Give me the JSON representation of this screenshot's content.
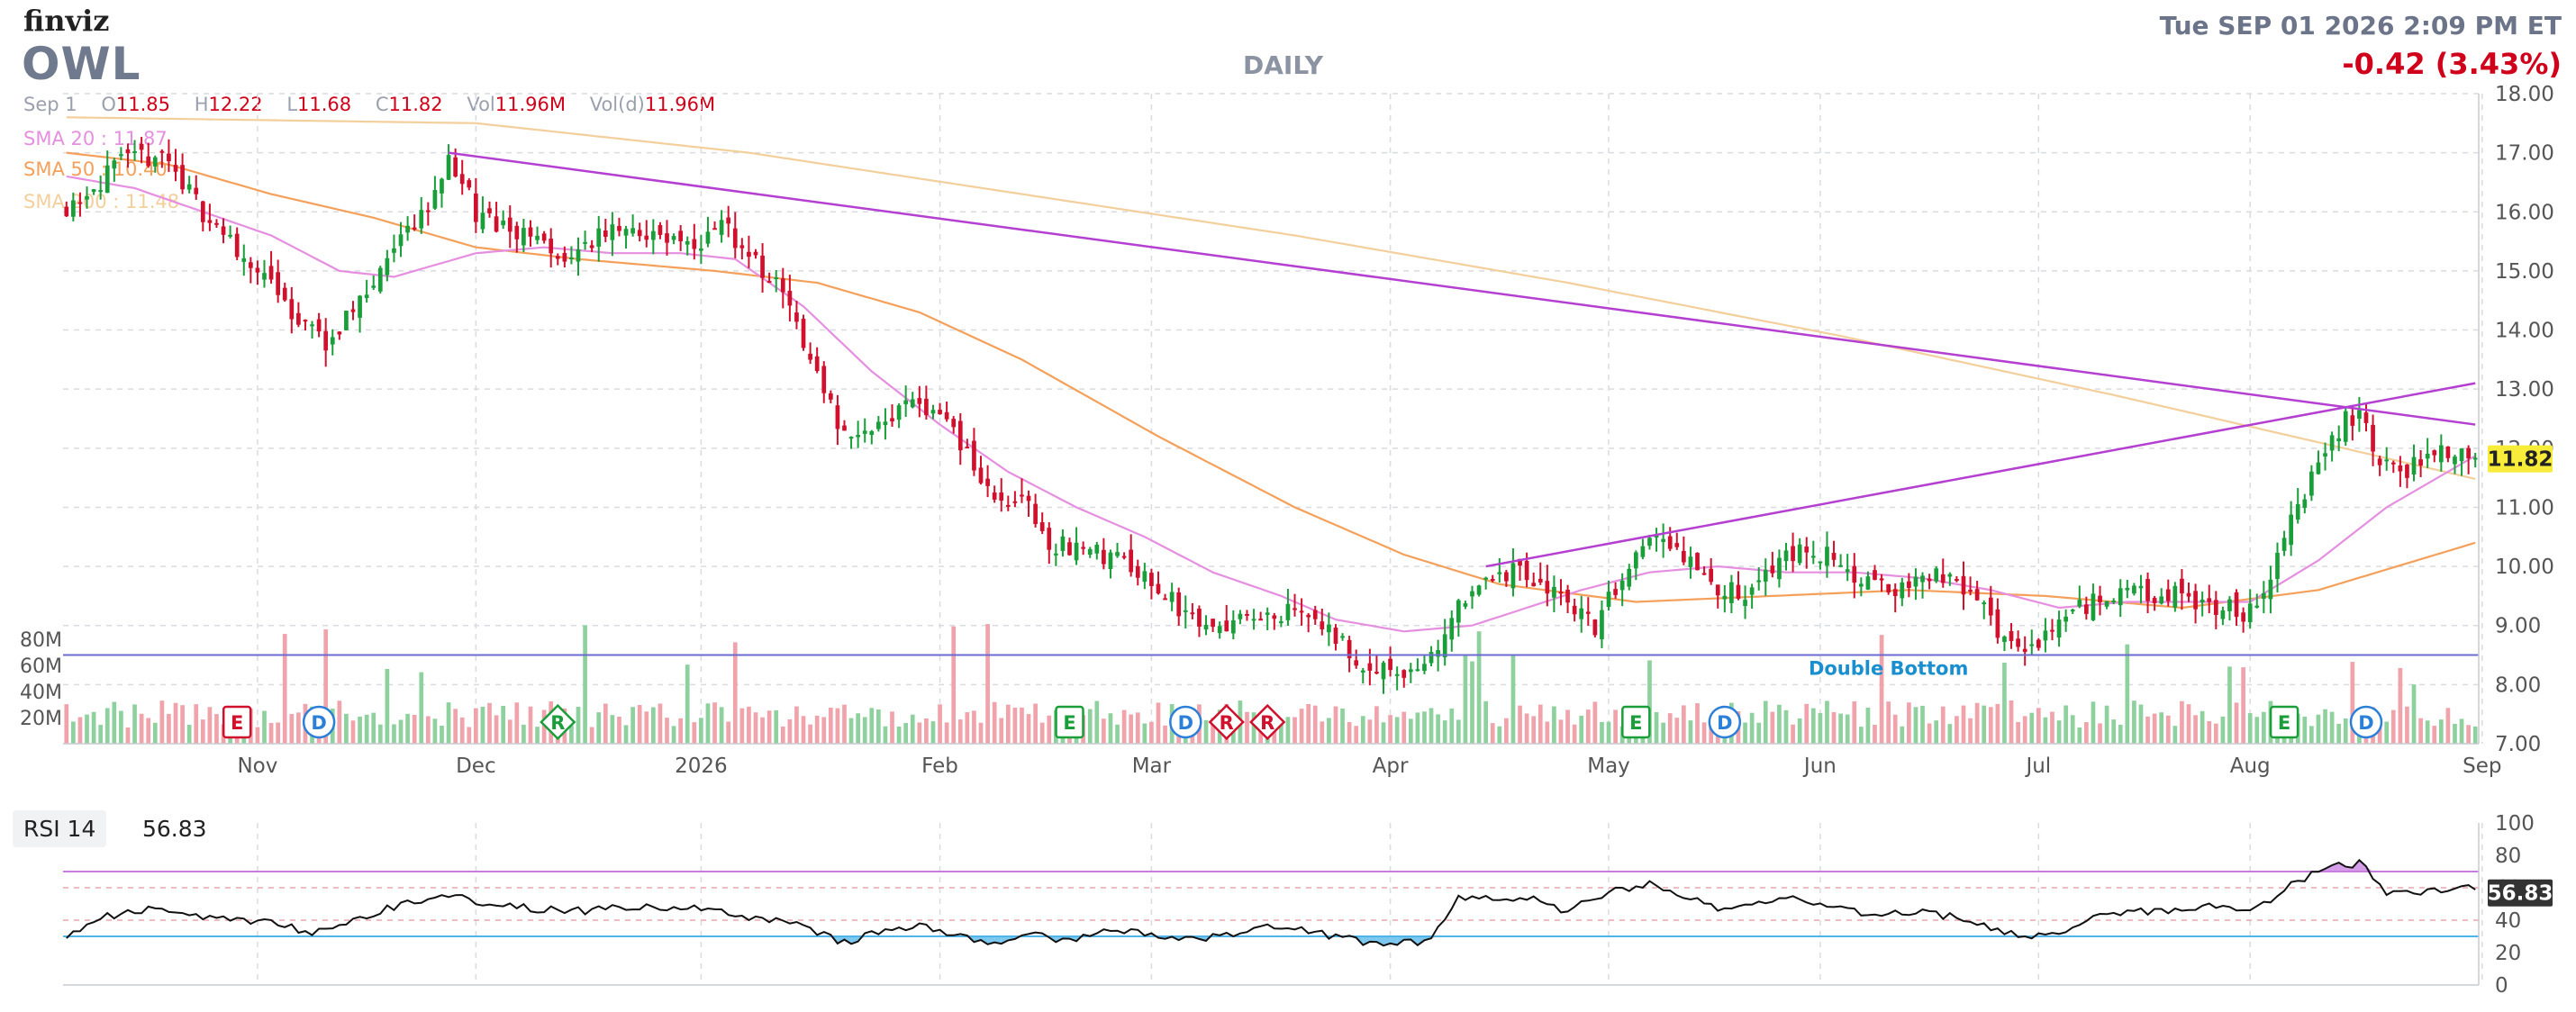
{
  "header": {
    "logo": "finviz",
    "ticker": "OWL",
    "timeframe": "DAILY",
    "datetime": "Tue SEP 01 2026 2:09 PM ET",
    "change": "-0.42 (3.43%)",
    "ohlc": {
      "date": "Sep 1",
      "open_label": "O",
      "open": "11.85",
      "high_label": "H",
      "high": "12.22",
      "low_label": "L",
      "low": "11.68",
      "close_label": "C",
      "close": "11.82",
      "vol_label": "Vol",
      "vol": "11.96M",
      "vold_label": "Vol(d)",
      "vold": "11.96M"
    },
    "sma20": "SMA 20 : 11.87",
    "sma50": "SMA 50 : 10.40",
    "sma200": "SMA 200 : 11.48"
  },
  "rsi": {
    "label": "RSI 14",
    "value": "56.83"
  },
  "colors": {
    "up": "#1a9e3a",
    "down": "#d0102c",
    "vol_up": "#8fd19e",
    "vol_down": "#f0a3ab",
    "sma20": "#e68fe0",
    "sma50": "#f5a05a",
    "sma200": "#f3cf9c",
    "trendline": "#b43fd1",
    "support": "#6b6bd1",
    "last_price_bg": "#f7ec3a",
    "rsi_line": "#111111",
    "rsi_over": "#c77ce0",
    "rsi_under": "#4fb4e8"
  },
  "chart_data": {
    "type": "candlestick",
    "ylim": [
      7,
      18
    ],
    "yticks": [
      "18.00",
      "17.00",
      "16.00",
      "15.00",
      "14.00",
      "13.00",
      "12.00",
      "11.00",
      "10.00",
      "9.00",
      "8.00",
      "7.00"
    ],
    "x_labels": [
      "Nov",
      "Dec",
      "2026",
      "Feb",
      "Mar",
      "Apr",
      "May",
      "Jun",
      "Jul",
      "Aug",
      "Sep"
    ],
    "volume_ticks": [
      "80M",
      "60M",
      "40M",
      "20M"
    ],
    "last_price": "11.82",
    "pattern_label": "Double Bottom",
    "events": [
      {
        "type": "E",
        "x_month": "Oct"
      },
      {
        "type": "D",
        "x_month": "Oct"
      },
      {
        "type": "R",
        "x_month": "Dec"
      },
      {
        "type": "E",
        "x_month": "Feb"
      },
      {
        "type": "D",
        "x_month": "Feb"
      },
      {
        "type": "R",
        "x_month": "Feb"
      },
      {
        "type": "R",
        "x_month": "Feb"
      },
      {
        "type": "E",
        "x_month": "May"
      },
      {
        "type": "D",
        "x_month": "May"
      },
      {
        "type": "E",
        "x_month": "Jul"
      },
      {
        "type": "D",
        "x_month": "Aug"
      }
    ],
    "price_anchors": [
      [
        0,
        16.1
      ],
      [
        8,
        16.8
      ],
      [
        14,
        17.0
      ],
      [
        20,
        16.0
      ],
      [
        28,
        15.0
      ],
      [
        34,
        14.2
      ],
      [
        38,
        13.8
      ],
      [
        42,
        14.3
      ],
      [
        46,
        15.0
      ],
      [
        50,
        15.6
      ],
      [
        54,
        16.3
      ],
      [
        56,
        17.0
      ],
      [
        60,
        16.0
      ],
      [
        68,
        15.5
      ],
      [
        74,
        15.1
      ],
      [
        80,
        15.8
      ],
      [
        86,
        15.6
      ],
      [
        92,
        15.4
      ],
      [
        96,
        15.8
      ],
      [
        102,
        15.0
      ],
      [
        106,
        14.5
      ],
      [
        110,
        13.2
      ],
      [
        114,
        12.2
      ],
      [
        120,
        12.5
      ],
      [
        124,
        12.9
      ],
      [
        130,
        12.3
      ],
      [
        136,
        11.1
      ],
      [
        140,
        11.2
      ],
      [
        144,
        10.4
      ],
      [
        148,
        10.3
      ],
      [
        152,
        10.2
      ],
      [
        158,
        9.9
      ],
      [
        164,
        9.2
      ],
      [
        168,
        9.0
      ],
      [
        172,
        9.1
      ],
      [
        176,
        9.2
      ],
      [
        180,
        9.2
      ],
      [
        186,
        8.8
      ],
      [
        190,
        8.3
      ],
      [
        196,
        8.2
      ],
      [
        200,
        8.4
      ],
      [
        204,
        9.3
      ],
      [
        208,
        9.9
      ],
      [
        212,
        9.9
      ],
      [
        218,
        9.6
      ],
      [
        224,
        9.0
      ],
      [
        228,
        9.9
      ],
      [
        232,
        10.4
      ],
      [
        236,
        10.3
      ],
      [
        240,
        9.7
      ],
      [
        246,
        9.6
      ],
      [
        250,
        10.0
      ],
      [
        254,
        10.3
      ],
      [
        258,
        10.2
      ],
      [
        262,
        9.7
      ],
      [
        268,
        9.6
      ],
      [
        274,
        9.9
      ],
      [
        280,
        9.4
      ],
      [
        284,
        8.8
      ],
      [
        288,
        8.6
      ],
      [
        292,
        9.1
      ],
      [
        298,
        9.5
      ],
      [
        304,
        9.5
      ],
      [
        310,
        9.5
      ],
      [
        316,
        9.3
      ],
      [
        320,
        9.2
      ],
      [
        324,
        10.2
      ],
      [
        330,
        11.8
      ],
      [
        334,
        12.5
      ],
      [
        336,
        12.6
      ],
      [
        338,
        11.9
      ],
      [
        342,
        11.6
      ],
      [
        346,
        11.8
      ],
      [
        350,
        12.0
      ],
      [
        353,
        11.82
      ]
    ],
    "sma20_anchors": [
      [
        0,
        16.6
      ],
      [
        10,
        16.4
      ],
      [
        20,
        16.0
      ],
      [
        30,
        15.6
      ],
      [
        40,
        15.0
      ],
      [
        48,
        14.9
      ],
      [
        60,
        15.3
      ],
      [
        70,
        15.4
      ],
      [
        80,
        15.3
      ],
      [
        90,
        15.3
      ],
      [
        98,
        15.2
      ],
      [
        108,
        14.4
      ],
      [
        118,
        13.3
      ],
      [
        128,
        12.4
      ],
      [
        138,
        11.6
      ],
      [
        148,
        11.0
      ],
      [
        158,
        10.5
      ],
      [
        168,
        9.9
      ],
      [
        178,
        9.5
      ],
      [
        186,
        9.1
      ],
      [
        196,
        8.9
      ],
      [
        206,
        9.0
      ],
      [
        214,
        9.3
      ],
      [
        222,
        9.6
      ],
      [
        232,
        9.9
      ],
      [
        242,
        10.0
      ],
      [
        252,
        9.9
      ],
      [
        262,
        9.9
      ],
      [
        272,
        9.8
      ],
      [
        282,
        9.6
      ],
      [
        292,
        9.3
      ],
      [
        302,
        9.4
      ],
      [
        312,
        9.4
      ],
      [
        320,
        9.4
      ],
      [
        330,
        10.1
      ],
      [
        340,
        11.0
      ],
      [
        353,
        11.87
      ]
    ],
    "sma50_anchors": [
      [
        0,
        17.0
      ],
      [
        15,
        16.8
      ],
      [
        30,
        16.3
      ],
      [
        45,
        15.9
      ],
      [
        60,
        15.4
      ],
      [
        75,
        15.2
      ],
      [
        95,
        15.0
      ],
      [
        110,
        14.8
      ],
      [
        125,
        14.3
      ],
      [
        140,
        13.5
      ],
      [
        160,
        12.2
      ],
      [
        180,
        11.0
      ],
      [
        196,
        10.2
      ],
      [
        210,
        9.7
      ],
      [
        230,
        9.4
      ],
      [
        250,
        9.5
      ],
      [
        270,
        9.6
      ],
      [
        290,
        9.5
      ],
      [
        310,
        9.3
      ],
      [
        330,
        9.6
      ],
      [
        353,
        10.4
      ]
    ],
    "sma200_anchors": [
      [
        0,
        17.6
      ],
      [
        60,
        17.5
      ],
      [
        100,
        17.0
      ],
      [
        140,
        16.3
      ],
      [
        180,
        15.6
      ],
      [
        220,
        14.8
      ],
      [
        260,
        13.9
      ],
      [
        300,
        12.9
      ],
      [
        330,
        12.1
      ],
      [
        353,
        11.48
      ]
    ],
    "trendlines": [
      {
        "name": "upper",
        "from": [
          56,
          17.0
        ],
        "to": [
          353,
          12.4
        ]
      },
      {
        "name": "lower",
        "from": [
          208,
          10.0
        ],
        "to": [
          353,
          13.1
        ]
      }
    ],
    "support_level": 8.5,
    "rsi_ylim": [
      0,
      100
    ],
    "rsi_ticks": [
      "100",
      "80",
      "60",
      "40",
      "20",
      "0"
    ],
    "rsi_levels": {
      "overbought": 70,
      "oversold": 30
    },
    "rsi_anchors": [
      [
        0,
        30
      ],
      [
        6,
        42
      ],
      [
        12,
        47
      ],
      [
        18,
        43
      ],
      [
        24,
        40
      ],
      [
        30,
        40
      ],
      [
        36,
        32
      ],
      [
        42,
        40
      ],
      [
        48,
        48
      ],
      [
        54,
        55
      ],
      [
        58,
        54
      ],
      [
        64,
        48
      ],
      [
        70,
        47
      ],
      [
        76,
        46
      ],
      [
        84,
        48
      ],
      [
        92,
        48
      ],
      [
        98,
        43
      ],
      [
        104,
        40
      ],
      [
        110,
        33
      ],
      [
        114,
        26
      ],
      [
        120,
        34
      ],
      [
        126,
        37
      ],
      [
        130,
        30
      ],
      [
        136,
        26
      ],
      [
        142,
        30
      ],
      [
        148,
        28
      ],
      [
        154,
        34
      ],
      [
        160,
        31
      ],
      [
        166,
        28
      ],
      [
        172,
        33
      ],
      [
        178,
        36
      ],
      [
        184,
        31
      ],
      [
        190,
        27
      ],
      [
        196,
        26
      ],
      [
        200,
        27
      ],
      [
        204,
        55
      ],
      [
        210,
        53
      ],
      [
        216,
        53
      ],
      [
        220,
        45
      ],
      [
        226,
        58
      ],
      [
        232,
        62
      ],
      [
        236,
        55
      ],
      [
        242,
        48
      ],
      [
        248,
        52
      ],
      [
        254,
        53
      ],
      [
        260,
        47
      ],
      [
        266,
        43
      ],
      [
        272,
        46
      ],
      [
        280,
        38
      ],
      [
        286,
        30
      ],
      [
        292,
        33
      ],
      [
        298,
        44
      ],
      [
        306,
        46
      ],
      [
        314,
        48
      ],
      [
        320,
        44
      ],
      [
        326,
        62
      ],
      [
        332,
        74
      ],
      [
        336,
        75
      ],
      [
        340,
        58
      ],
      [
        346,
        57
      ],
      [
        352,
        62
      ],
      [
        353,
        56.83
      ]
    ]
  }
}
